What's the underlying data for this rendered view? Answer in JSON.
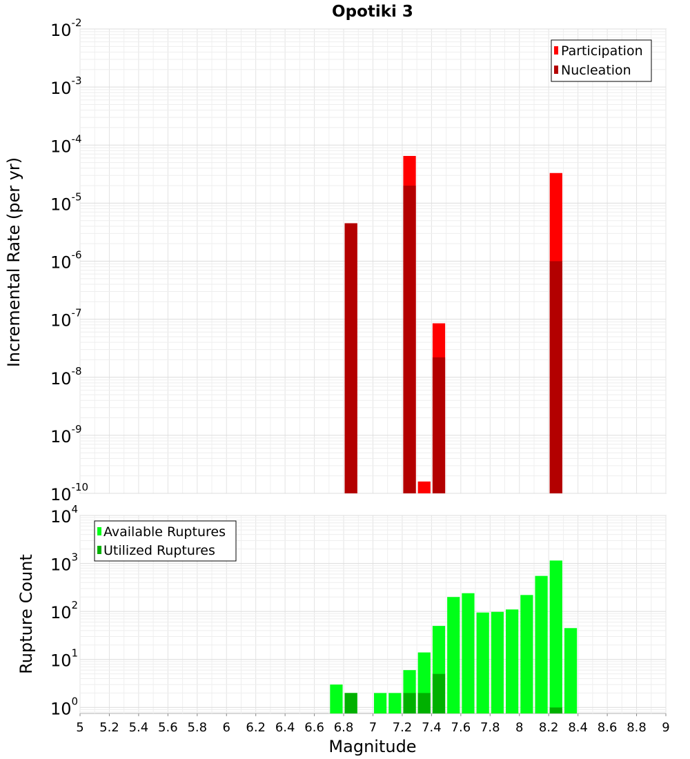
{
  "chart_data": [
    {
      "type": "bar",
      "title": "Opotiki 3",
      "ylabel": "Incremental Rate (per yr)",
      "xlabel": "",
      "xlim": [
        5,
        9
      ],
      "ylim": [
        1e-10,
        0.01
      ],
      "yscale": "log",
      "bar_width": 0.1,
      "grid": true,
      "legend_position": "top-right",
      "legend": [
        "Participation",
        "Nucleation"
      ],
      "colors": {
        "Participation": "#ff0000",
        "Nucleation": "#b30000"
      },
      "yticks": [
        {
          "base": "10",
          "exp": "-2"
        },
        {
          "base": "10",
          "exp": "-3"
        },
        {
          "base": "10",
          "exp": "-4"
        },
        {
          "base": "10",
          "exp": "-5"
        },
        {
          "base": "10",
          "exp": "-6"
        },
        {
          "base": "10",
          "exp": "-7"
        },
        {
          "base": "10",
          "exp": "-8"
        },
        {
          "base": "10",
          "exp": "-9"
        },
        {
          "base": "10",
          "exp": "-10"
        }
      ],
      "series": [
        {
          "name": "Participation",
          "x": [
            6.85,
            7.25,
            7.35,
            7.45,
            8.25
          ],
          "values": [
            4.5e-06,
            6.5e-05,
            1.6e-10,
            8.5e-08,
            3.3e-05
          ]
        },
        {
          "name": "Nucleation",
          "x": [
            6.85,
            7.25,
            7.45,
            8.25
          ],
          "values": [
            4.5e-06,
            2e-05,
            2.2e-08,
            1e-06
          ]
        }
      ]
    },
    {
      "type": "bar",
      "title": "",
      "ylabel": "Rupture Count",
      "xlabel": "Magnitude",
      "xlim": [
        5,
        9
      ],
      "ylim": [
        0.75,
        10000
      ],
      "yscale": "log",
      "bar_width": 0.1,
      "grid": true,
      "legend_position": "top-left",
      "legend": [
        "Available Ruptures",
        "Utilized Ruptures"
      ],
      "colors": {
        "Available Ruptures": "#00ff18",
        "Utilized Ruptures": "#00b000"
      },
      "xticks": [
        "5",
        "5.2",
        "5.4",
        "5.6",
        "5.8",
        "6",
        "6.2",
        "6.4",
        "6.6",
        "6.8",
        "7",
        "7.2",
        "7.4",
        "7.6",
        "7.8",
        "8",
        "8.2",
        "8.4",
        "8.6",
        "8.8",
        "9"
      ],
      "yticks": [
        {
          "base": "10",
          "exp": "4"
        },
        {
          "base": "10",
          "exp": "3"
        },
        {
          "base": "10",
          "exp": "2"
        },
        {
          "base": "10",
          "exp": "1"
        },
        {
          "base": "10",
          "exp": "0"
        }
      ],
      "series": [
        {
          "name": "Available Ruptures",
          "x": [
            6.75,
            6.85,
            7.05,
            7.15,
            7.25,
            7.35,
            7.45,
            7.55,
            7.65,
            7.75,
            7.85,
            7.95,
            8.05,
            8.15,
            8.25,
            8.35
          ],
          "values": [
            3,
            2,
            2,
            2,
            6,
            14,
            50,
            200,
            240,
            95,
            98,
            110,
            220,
            550,
            1150,
            45
          ]
        },
        {
          "name": "Utilized Ruptures",
          "x": [
            6.85,
            7.25,
            7.35,
            7.45,
            8.25
          ],
          "values": [
            2,
            2,
            2,
            5,
            1
          ]
        }
      ]
    }
  ]
}
